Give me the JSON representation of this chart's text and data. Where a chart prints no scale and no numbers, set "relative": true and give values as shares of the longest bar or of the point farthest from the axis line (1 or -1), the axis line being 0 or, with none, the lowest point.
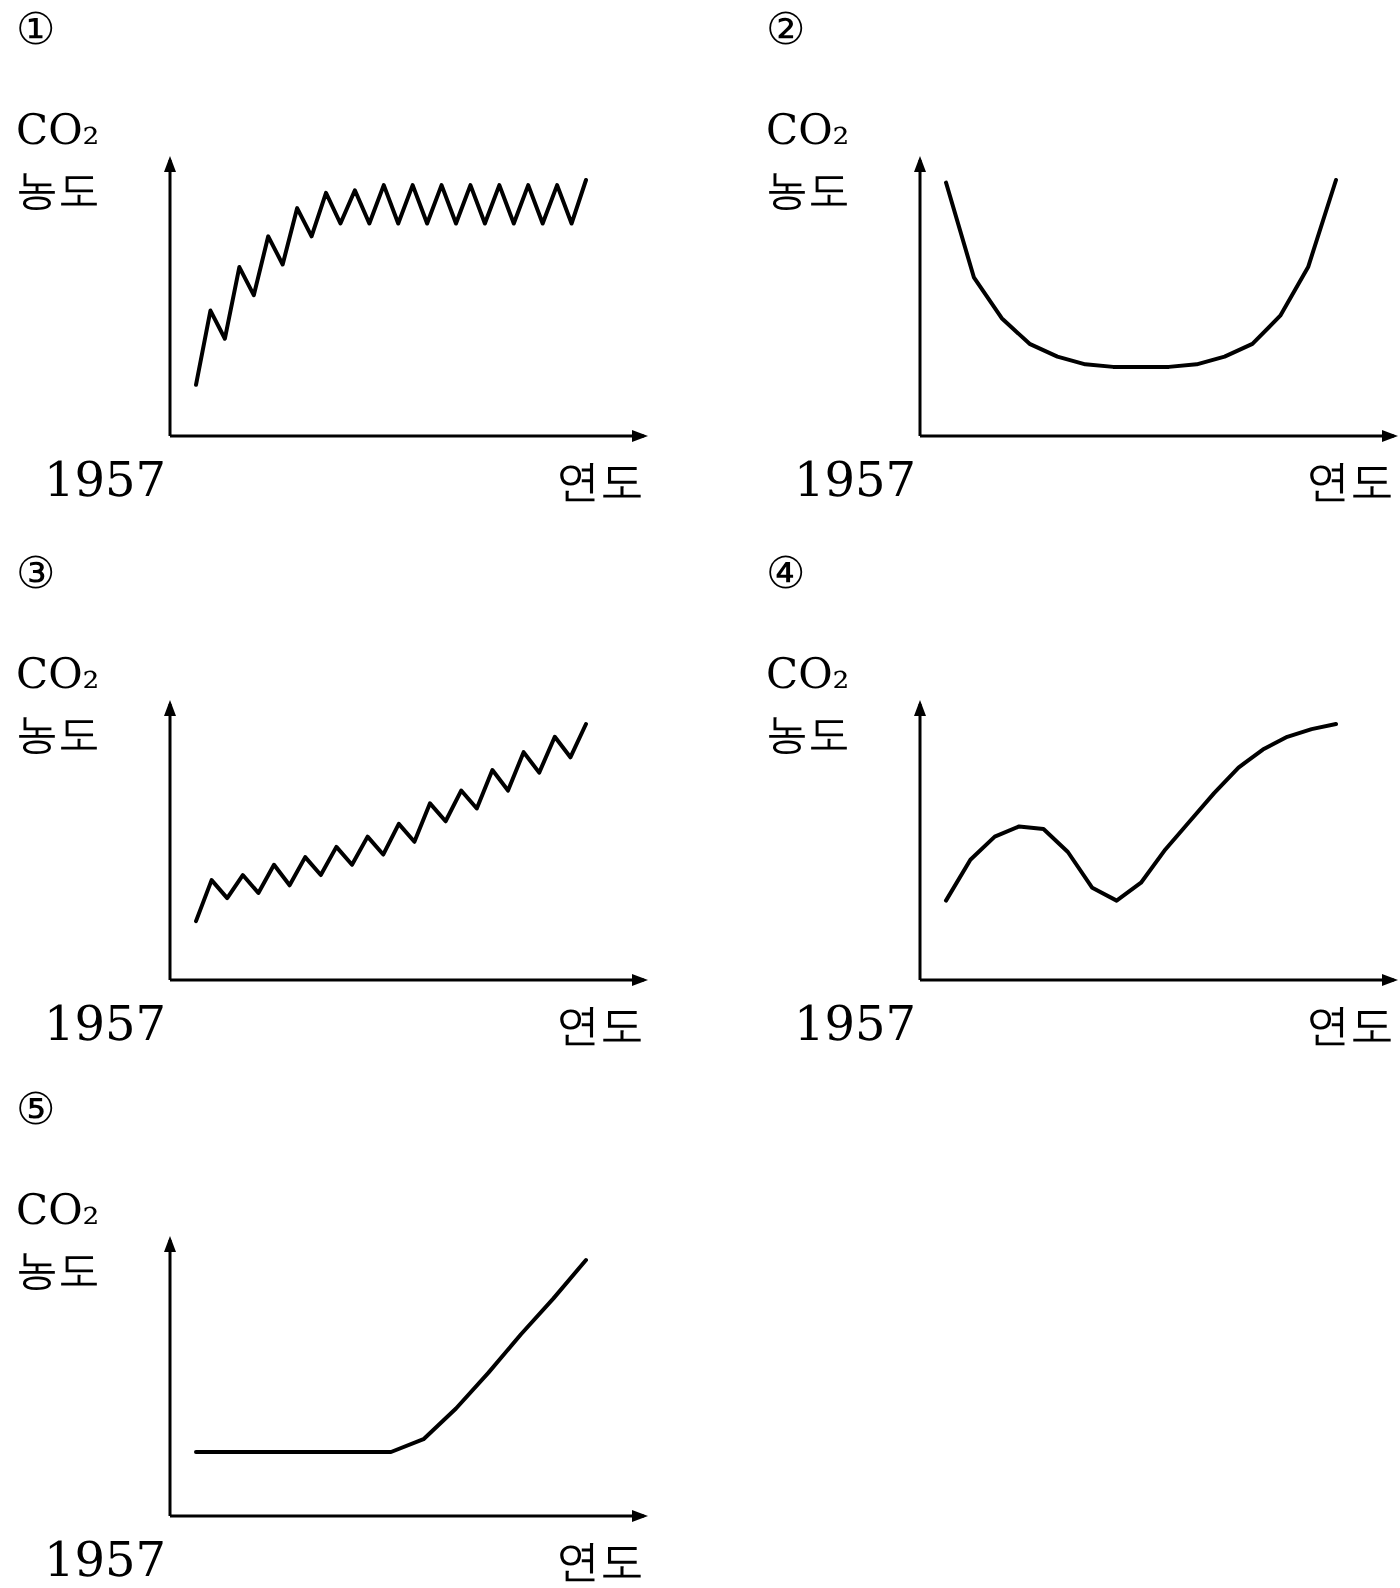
{
  "chart_data": [
    {
      "type": "line",
      "title": "①",
      "ylabel": "CO₂ 농도",
      "xlabel": "연도",
      "annotations": [
        "1957"
      ],
      "relative": true,
      "categories": [
        null,
        null,
        null,
        null,
        null,
        null,
        null,
        null,
        null,
        null,
        null,
        null,
        null,
        null,
        null,
        null,
        null,
        null,
        null,
        null,
        null,
        null,
        null,
        null,
        null,
        null,
        null,
        null
      ],
      "series": [
        {
          "color": "#000000",
          "values": [
            0.2,
            0.49,
            0.38,
            0.66,
            0.55,
            0.78,
            0.67,
            0.89,
            0.78,
            0.95,
            0.83,
            0.96,
            0.83,
            0.98,
            0.83,
            0.98,
            0.83,
            0.98,
            0.83,
            0.98,
            0.83,
            0.98,
            0.83,
            0.98,
            0.83,
            0.98,
            0.83,
            1
          ]
        }
      ]
    },
    {
      "type": "line",
      "title": "②",
      "ylabel": "CO₂ 농도",
      "xlabel": "연도",
      "annotations": [
        "1957"
      ],
      "relative": true,
      "categories": [
        null,
        null,
        null,
        null,
        null,
        null,
        null,
        null,
        null,
        null,
        null,
        null,
        null,
        null,
        null
      ],
      "series": [
        {
          "color": "#000000",
          "values": [
            0.99,
            0.62,
            0.46,
            0.36,
            0.31,
            0.28,
            0.27,
            0.27,
            0.27,
            0.28,
            0.31,
            0.36,
            0.47,
            0.66,
            1
          ]
        }
      ]
    },
    {
      "type": "line",
      "title": "③",
      "ylabel": "CO₂ 농도",
      "xlabel": "연도",
      "annotations": [
        "1957"
      ],
      "relative": true,
      "categories": [
        null,
        null,
        null,
        null,
        null,
        null,
        null,
        null,
        null,
        null,
        null,
        null,
        null,
        null,
        null,
        null,
        null,
        null,
        null,
        null,
        null,
        null,
        null,
        null,
        null,
        null
      ],
      "series": [
        {
          "color": "#000000",
          "values": [
            0.23,
            0.39,
            0.32,
            0.41,
            0.34,
            0.45,
            0.37,
            0.48,
            0.41,
            0.52,
            0.45,
            0.56,
            0.49,
            0.61,
            0.54,
            0.69,
            0.62,
            0.74,
            0.67,
            0.82,
            0.74,
            0.89,
            0.81,
            0.95,
            0.87,
            1
          ]
        }
      ]
    },
    {
      "type": "line",
      "title": "④",
      "ylabel": "CO₂ 농도",
      "xlabel": "연도",
      "annotations": [
        "1957"
      ],
      "relative": true,
      "categories": [
        null,
        null,
        null,
        null,
        null,
        null,
        null,
        null,
        null,
        null,
        null,
        null,
        null,
        null,
        null,
        null,
        null
      ],
      "series": [
        {
          "color": "#000000",
          "values": [
            0.31,
            0.47,
            0.56,
            0.6,
            0.59,
            0.5,
            0.36,
            0.31,
            0.38,
            0.51,
            0.62,
            0.73,
            0.83,
            0.9,
            0.95,
            0.98,
            1
          ]
        }
      ]
    },
    {
      "type": "line",
      "title": "⑤",
      "ylabel": "CO₂ 농도",
      "xlabel": "연도",
      "annotations": [
        "1957"
      ],
      "relative": true,
      "categories": [
        null,
        null,
        null,
        null,
        null,
        null,
        null,
        null,
        null,
        null,
        null,
        null,
        null
      ],
      "series": [
        {
          "color": "#000000",
          "values": [
            0.25,
            0.25,
            0.25,
            0.25,
            0.25,
            0.25,
            0.25,
            0.3,
            0.42,
            0.56,
            0.71,
            0.85,
            1
          ]
        }
      ]
    }
  ]
}
